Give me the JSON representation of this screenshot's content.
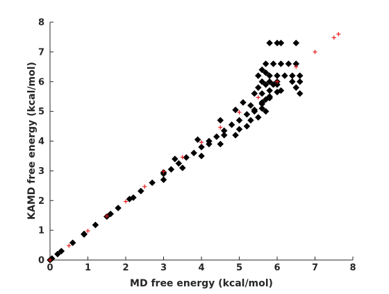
{
  "chart_data": {
    "type": "scatter",
    "xlabel": "MD free energy (kcal/mol)",
    "ylabel": "KAMD free energy (kcal/mol)",
    "xlim": [
      0,
      8
    ],
    "ylim": [
      0,
      8
    ],
    "xticks": [
      0,
      1,
      2,
      3,
      4,
      5,
      6,
      7,
      8
    ],
    "yticks": [
      0,
      1,
      2,
      3,
      4,
      5,
      6,
      7,
      8
    ],
    "grid": false,
    "colors": {
      "black_points": "#000000",
      "red_points": "#e31a1c",
      "axes": "#262626"
    },
    "series": [
      {
        "marker": "diamond",
        "color": "#000000",
        "points": [
          [
            0.05,
            0.05
          ],
          [
            0.3,
            0.3
          ],
          [
            0.6,
            0.58
          ],
          [
            0.9,
            0.88
          ],
          [
            1.2,
            1.18
          ],
          [
            1.5,
            1.46
          ],
          [
            1.8,
            1.75
          ],
          [
            2.1,
            2.05
          ],
          [
            2.4,
            2.32
          ],
          [
            2.7,
            2.6
          ],
          [
            3.0,
            2.9
          ],
          [
            3.2,
            3.05
          ],
          [
            3.4,
            3.25
          ],
          [
            3.6,
            3.45
          ],
          [
            3.8,
            3.6
          ],
          [
            4.0,
            3.8
          ],
          [
            4.2,
            4.0
          ],
          [
            4.4,
            4.15
          ],
          [
            4.6,
            4.35
          ],
          [
            4.8,
            4.55
          ],
          [
            5.0,
            4.7
          ],
          [
            5.2,
            4.9
          ],
          [
            5.4,
            5.05
          ],
          [
            5.6,
            5.25
          ],
          [
            5.8,
            5.45
          ],
          [
            6.0,
            5.65
          ],
          [
            3.0,
            2.7
          ],
          [
            3.5,
            3.1
          ],
          [
            4.0,
            3.5
          ],
          [
            4.5,
            3.9
          ],
          [
            4.9,
            4.2
          ],
          [
            5.2,
            4.5
          ],
          [
            5.5,
            4.8
          ],
          [
            5.7,
            5.0
          ],
          [
            3.3,
            3.4
          ],
          [
            3.9,
            4.05
          ],
          [
            4.5,
            4.7
          ],
          [
            4.9,
            5.05
          ],
          [
            5.1,
            5.3
          ],
          [
            5.4,
            5.6
          ],
          [
            4.2,
            3.9
          ],
          [
            4.6,
            4.2
          ],
          [
            5.0,
            4.4
          ],
          [
            5.3,
            4.7
          ],
          [
            5.6,
            5.1
          ],
          [
            5.8,
            5.5
          ],
          [
            6.1,
            5.7
          ],
          [
            5.7,
            5.4
          ],
          [
            5.6,
            5.6
          ],
          [
            5.5,
            5.8
          ],
          [
            5.7,
            5.9
          ],
          [
            5.6,
            5.3
          ],
          [
            5.4,
            5.0
          ],
          [
            5.3,
            5.2
          ],
          [
            5.7,
            6.6
          ],
          [
            5.9,
            6.6
          ],
          [
            6.1,
            6.6
          ],
          [
            6.3,
            6.6
          ],
          [
            6.5,
            6.6
          ],
          [
            5.8,
            6.2
          ],
          [
            6.0,
            6.2
          ],
          [
            6.2,
            6.2
          ],
          [
            6.4,
            6.2
          ],
          [
            6.6,
            6.2
          ],
          [
            5.6,
            6.0
          ],
          [
            5.8,
            6.0
          ],
          [
            6.0,
            6.0
          ],
          [
            6.4,
            6.0
          ],
          [
            6.6,
            6.0
          ],
          [
            5.9,
            5.9
          ],
          [
            5.8,
            5.7
          ],
          [
            6.0,
            5.9
          ],
          [
            6.5,
            5.8
          ],
          [
            6.6,
            5.6
          ],
          [
            5.8,
            7.3
          ],
          [
            6.0,
            7.3
          ],
          [
            6.1,
            7.3
          ],
          [
            6.5,
            7.3
          ],
          [
            5.6,
            6.4
          ],
          [
            5.7,
            6.3
          ],
          [
            5.5,
            6.2
          ],
          [
            3.0,
            2.95
          ],
          [
            2.2,
            2.1
          ],
          [
            1.6,
            1.55
          ],
          [
            0.9,
            0.86
          ],
          [
            0.2,
            0.2
          ],
          [
            0.0,
            0.0
          ]
        ]
      },
      {
        "marker": "plus",
        "color": "#e31a1c",
        "points": [
          [
            0.0,
            0.0
          ],
          [
            0.5,
            0.48
          ],
          [
            1.0,
            0.98
          ],
          [
            1.5,
            1.48
          ],
          [
            2.0,
            1.97
          ],
          [
            2.5,
            2.47
          ],
          [
            3.0,
            2.98
          ],
          [
            3.5,
            3.46
          ],
          [
            4.0,
            3.96
          ],
          [
            4.5,
            4.46
          ],
          [
            5.0,
            4.97
          ],
          [
            5.5,
            5.47
          ],
          [
            6.0,
            6.0
          ],
          [
            6.5,
            6.5
          ],
          [
            7.0,
            7.0
          ],
          [
            7.5,
            7.48
          ],
          [
            7.62,
            7.6
          ]
        ]
      }
    ]
  }
}
